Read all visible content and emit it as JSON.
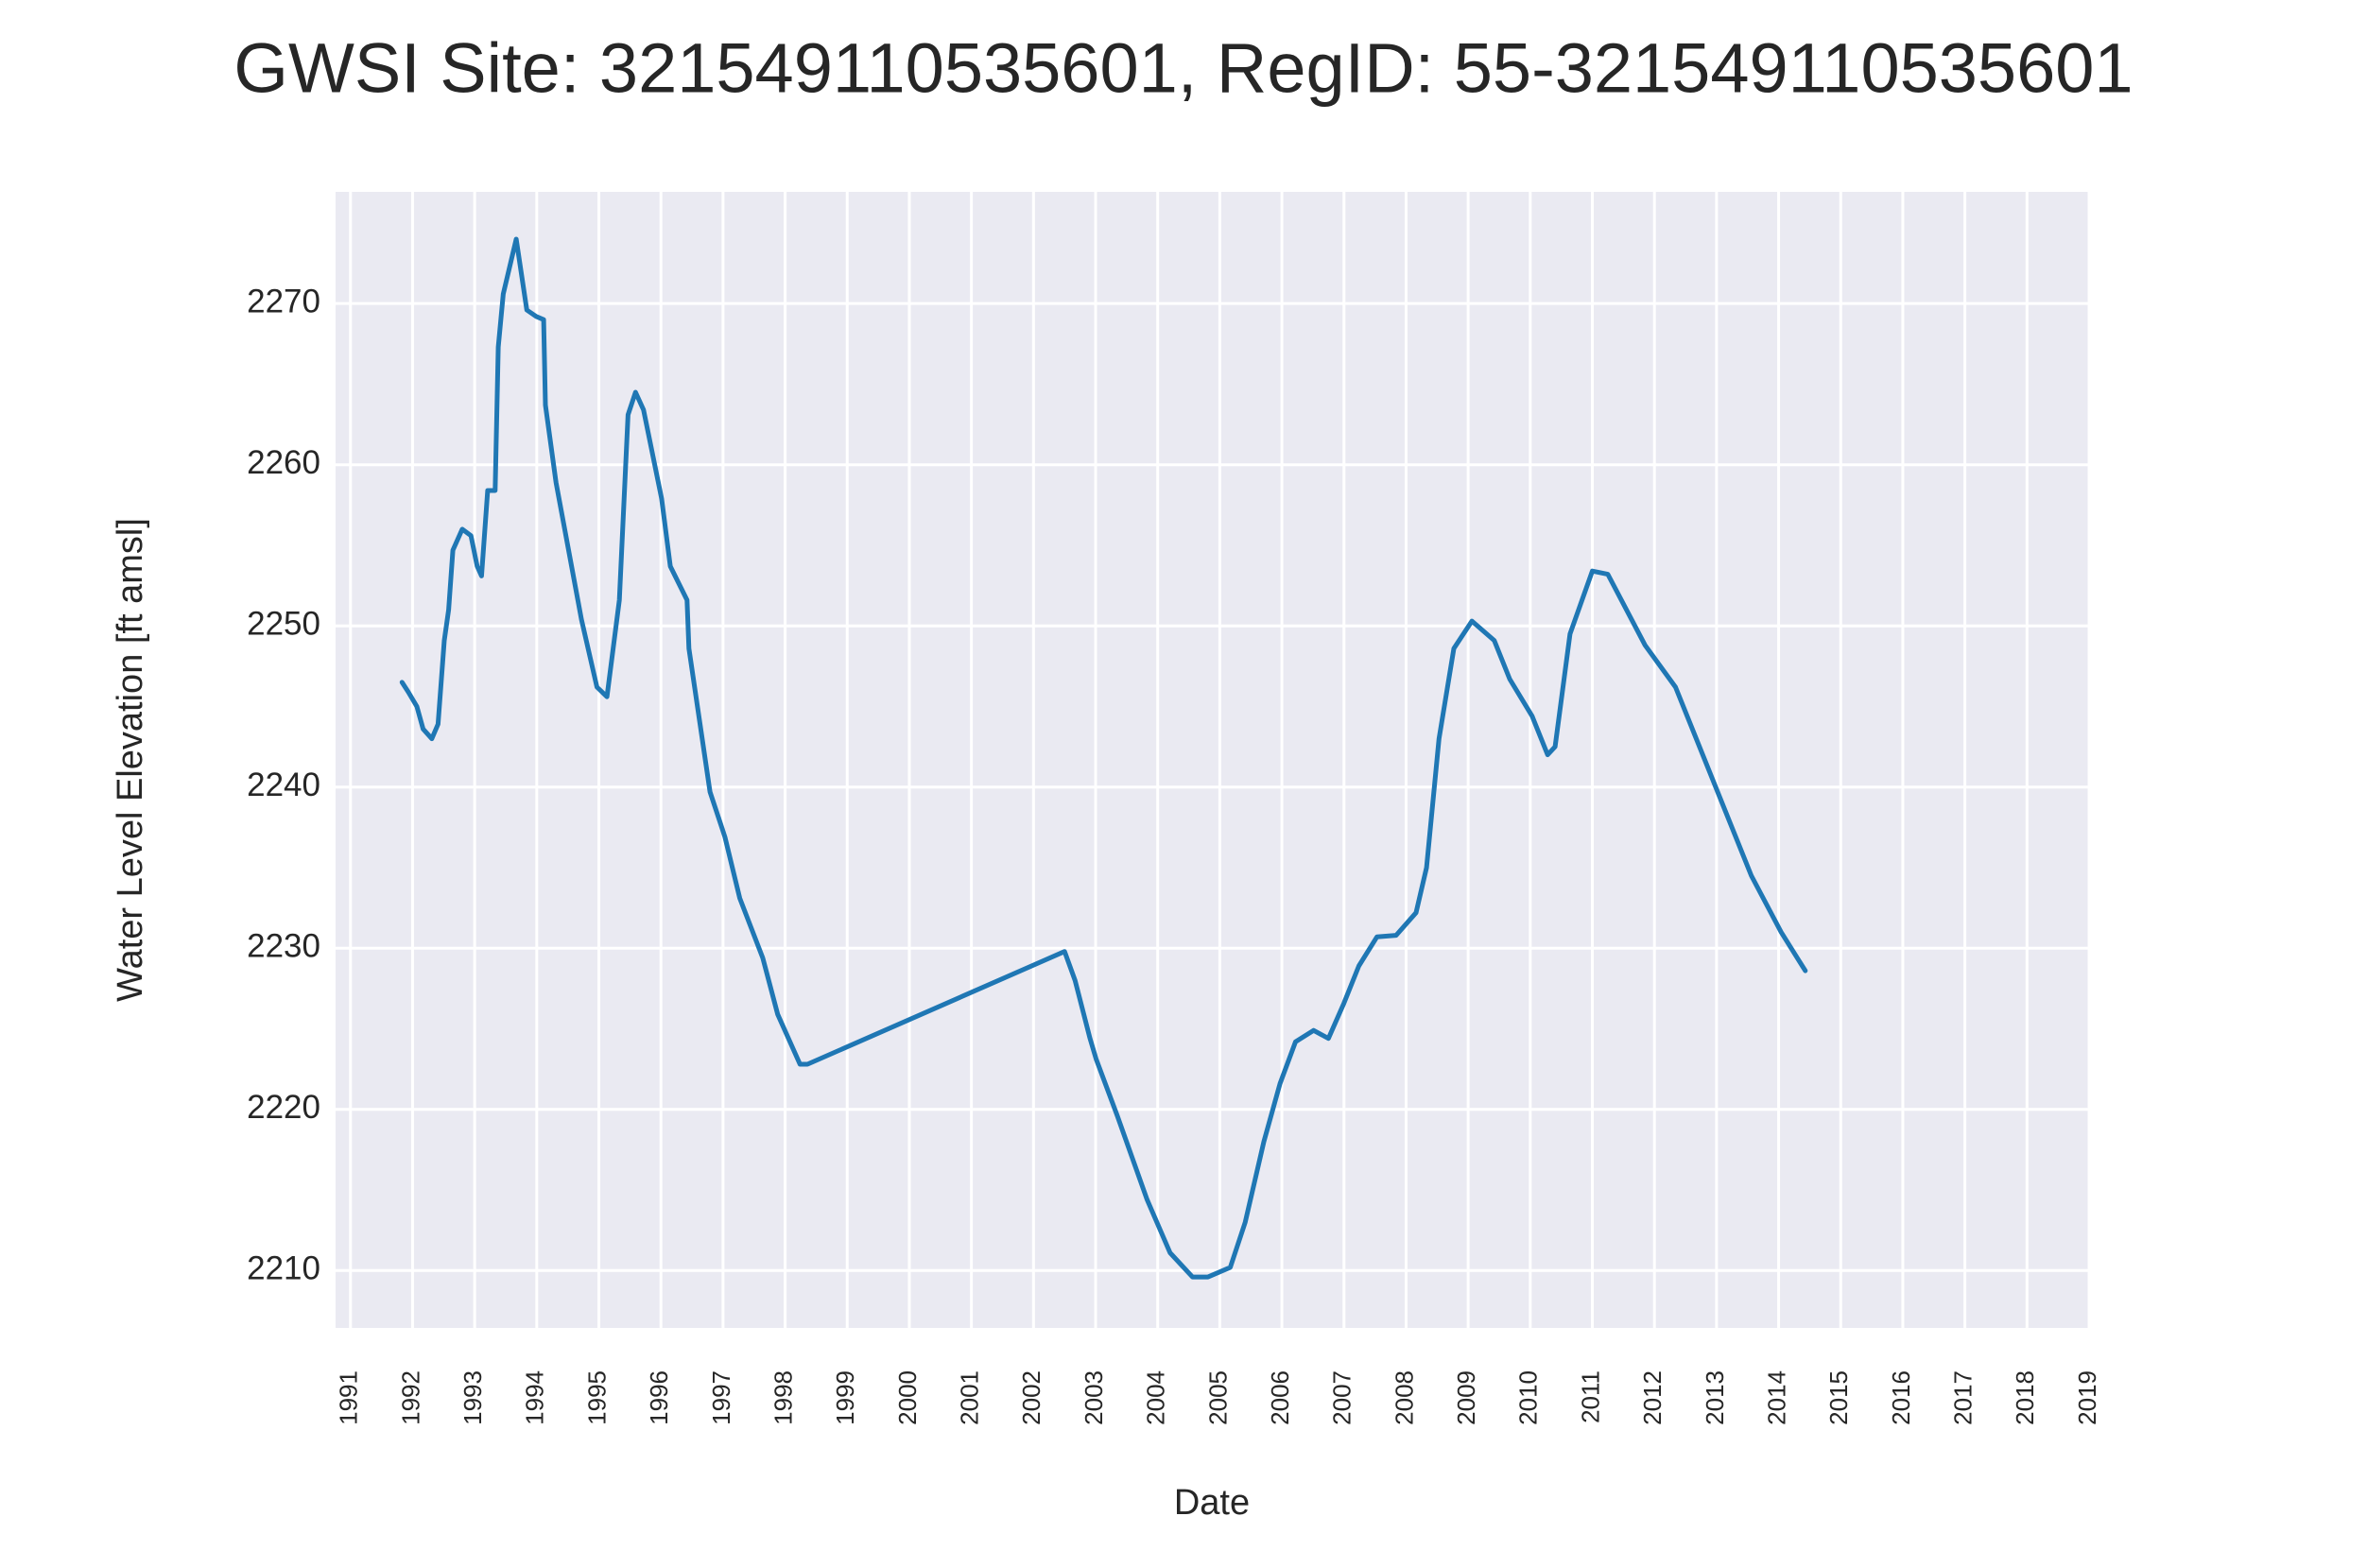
{
  "chart_data": {
    "type": "line",
    "title": "GWSI Site: 321549110535601, RegID: 55-321549110535601",
    "x_label": "Date",
    "y_label": "Water Level Elevation [ft amsl]",
    "xlim": [
      1990.76,
      2019.0
    ],
    "ylim": [
      2206.44,
      2276.93
    ],
    "xticks": [
      1991,
      1992,
      1993,
      1994,
      1995,
      1996,
      1997,
      1998,
      1999,
      2000,
      2001,
      2002,
      2003,
      2004,
      2005,
      2006,
      2007,
      2008,
      2009,
      2010,
      2011,
      2012,
      2013,
      2014,
      2015,
      2016,
      2017,
      2018,
      2019
    ],
    "yticks": [
      2210,
      2220,
      2230,
      2240,
      2250,
      2260,
      2270
    ],
    "grid": true,
    "background": "#eaeaf2",
    "series": [
      {
        "color": "#1f77b4",
        "x": [
          1991.83,
          1991.93,
          1992.07,
          1992.17,
          1992.31,
          1992.41,
          1992.51,
          1992.58,
          1992.65,
          1992.8,
          1992.94,
          1993.04,
          1993.11,
          1993.21,
          1993.33,
          1993.38,
          1993.46,
          1993.67,
          1993.84,
          1993.99,
          1994.11,
          1994.14,
          1994.31,
          1994.72,
          1994.97,
          1995.13,
          1995.33,
          1995.47,
          1995.59,
          1995.72,
          1996.01,
          1996.15,
          1996.42,
          1996.45,
          1996.79,
          1997.03,
          1997.27,
          1997.64,
          1997.88,
          1998.24,
          1998.36,
          2002.5,
          2002.67,
          2002.91,
          2003.01,
          2003.35,
          2003.83,
          2004.2,
          2004.56,
          2004.81,
          2005.17,
          2005.41,
          2005.71,
          2005.97,
          2006.22,
          2006.51,
          2006.75,
          2007.0,
          2007.24,
          2007.53,
          2007.84,
          2008.16,
          2008.33,
          2008.53,
          2008.77,
          2009.06,
          2009.42,
          2009.67,
          2010.03,
          2010.28,
          2010.4,
          2010.64,
          2011.0,
          2011.25,
          2011.85,
          2012.34,
          2013.07,
          2013.56,
          2014.04,
          2014.43
        ],
        "values": [
          2246.5,
          2245.9,
          2245,
          2243.6,
          2243,
          2243.9,
          2249.1,
          2251,
          2254.7,
          2256,
          2255.6,
          2253.7,
          2253.1,
          2258.4,
          2258.4,
          2267.3,
          2270.6,
          2274,
          2269.6,
          2269.2,
          2269,
          2263.7,
          2258.9,
          2250.4,
          2246.2,
          2245.6,
          2251.6,
          2263.1,
          2264.5,
          2263.4,
          2257.9,
          2253.7,
          2251.6,
          2248.6,
          2239.7,
          2236.9,
          2233.1,
          2229.4,
          2225.9,
          2222.8,
          2222.8,
          2229.8,
          2228,
          2224.4,
          2223.1,
          2219.6,
          2214.4,
          2211.1,
          2209.6,
          2209.6,
          2210.2,
          2213,
          2218,
          2221.6,
          2224.2,
          2224.9,
          2224.4,
          2226.6,
          2228.9,
          2230.7,
          2230.8,
          2232.2,
          2235,
          2243,
          2248.6,
          2250.3,
          2249.1,
          2246.7,
          2244.4,
          2242,
          2242.5,
          2249.5,
          2253.4,
          2253.2,
          2248.8,
          2246.2,
          2239.2,
          2234.5,
          2231,
          2228.6
        ]
      }
    ]
  }
}
